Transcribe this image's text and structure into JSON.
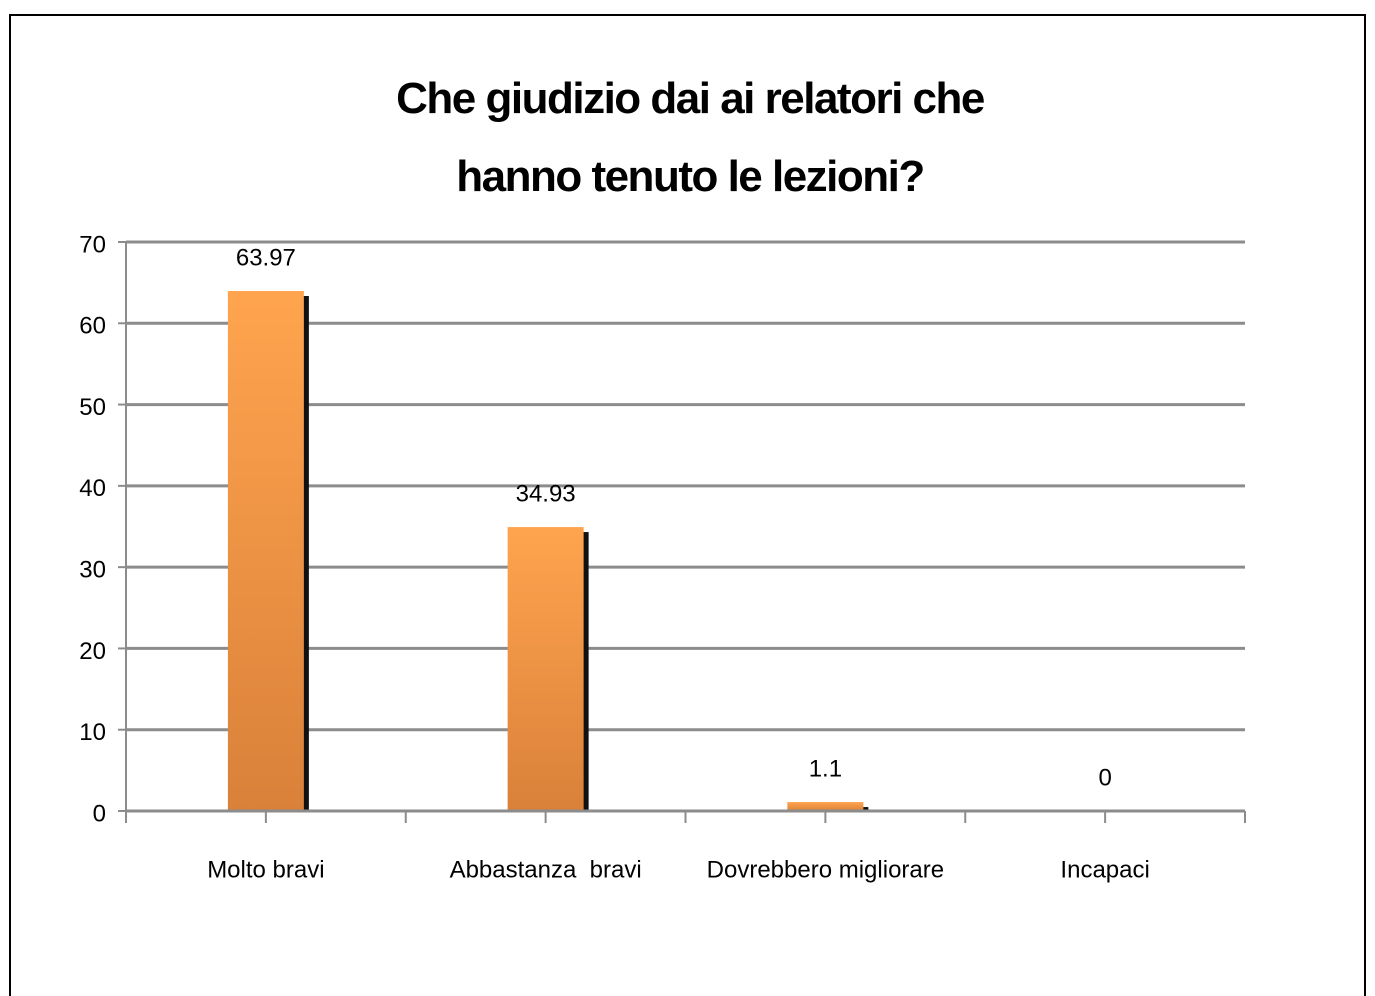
{
  "chart_data": {
    "type": "bar",
    "title": "Che giudizio dai ai relatori che hanno tenuto le lezioni?",
    "categories": [
      "Molto bravi",
      "Abbastanza  bravi",
      "Dovrebbero migliorare",
      "Incapaci"
    ],
    "values": [
      63.97,
      34.93,
      1.1,
      0
    ],
    "color": "#f09a48",
    "ylim": [
      0,
      70
    ],
    "yticks": [
      0,
      10,
      20,
      30,
      40,
      50,
      60,
      70
    ],
    "grid": true
  }
}
